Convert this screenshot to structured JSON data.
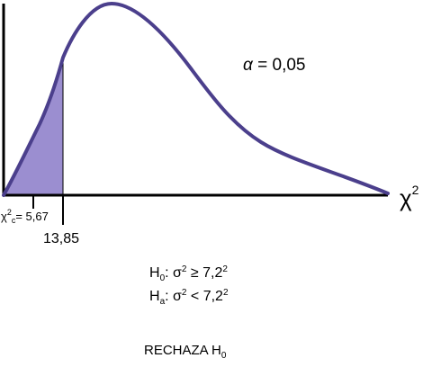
{
  "colors": {
    "curve": "#4b3f8c",
    "region_fill": "#9b8ed0",
    "axis": "#000000"
  },
  "figure": {
    "alpha_symbol": "α",
    "alpha_text": " = 0,05",
    "x_axis_label": "χ",
    "x_axis_superscript": "2",
    "critical_label": {
      "symbol": "χ",
      "superscript": "2",
      "subscript": "c",
      "text": "= 5,67"
    },
    "tick_value": "13,85"
  },
  "hypotheses": {
    "null": {
      "H": "H",
      "sub": "0",
      "colon": ": σ",
      "sup1": "2",
      "relation": " ≥ 7,2",
      "sup2": "2"
    },
    "alt": {
      "H": "H",
      "sub": "a",
      "colon": ": σ",
      "sup1": "2",
      "relation": " < 7,2",
      "sup2": "2"
    }
  },
  "decision": {
    "text": "RECHAZA H",
    "sub": "0"
  }
}
